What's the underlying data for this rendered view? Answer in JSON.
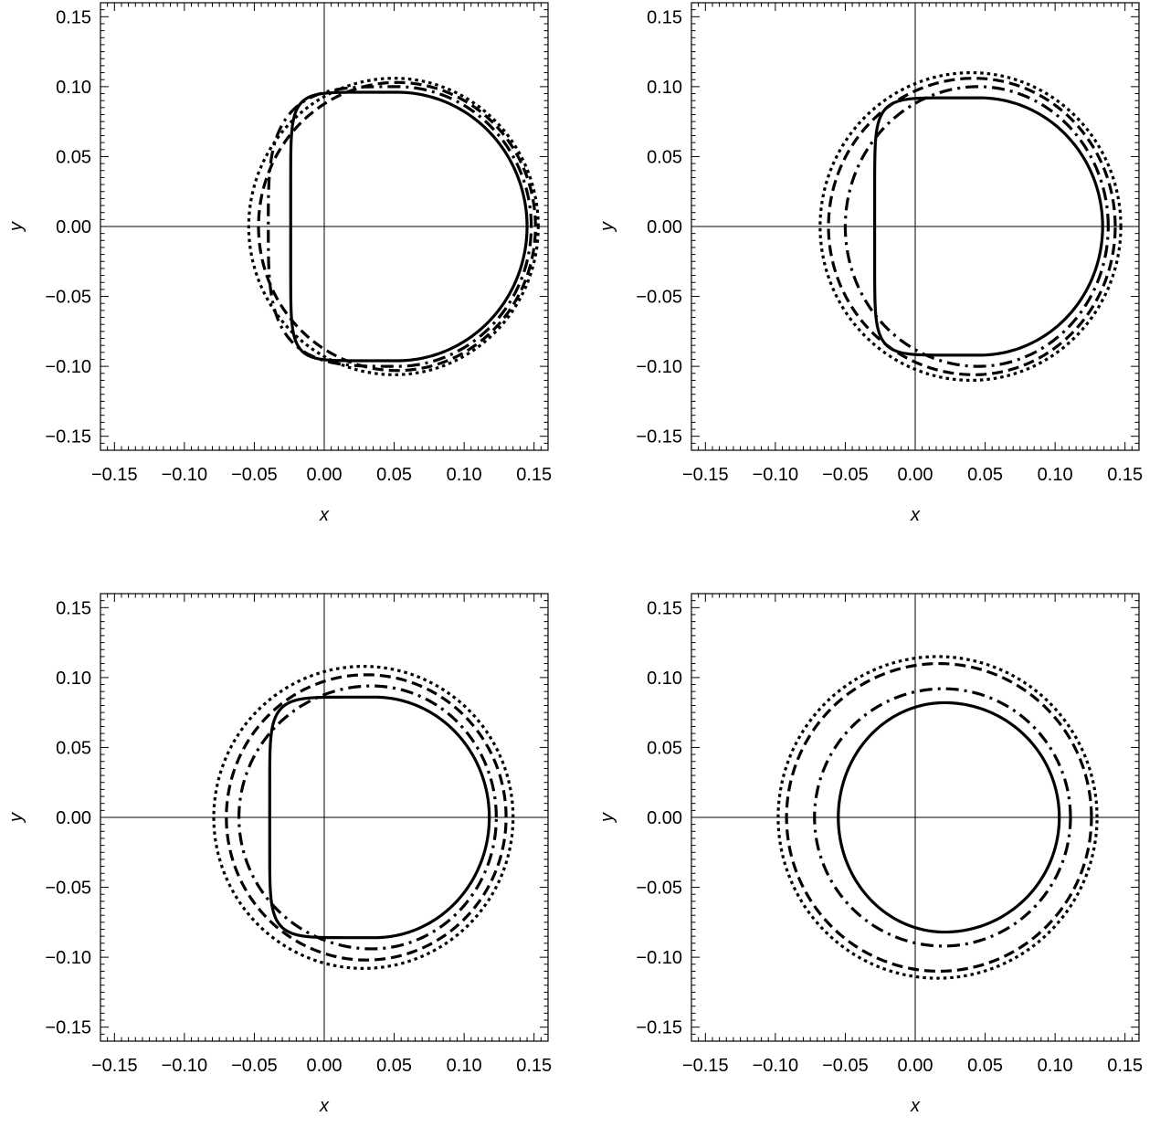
{
  "chart_data": [
    {
      "type": "line",
      "panel": "top-left",
      "xlabel": "x",
      "ylabel": "y",
      "xlim": [
        -0.16,
        0.16
      ],
      "ylim": [
        -0.16,
        0.16
      ],
      "xticks": [
        "-0.15",
        "-0.10",
        "-0.05",
        "0.00",
        "0.05",
        "0.10",
        "0.15"
      ],
      "yticks": [
        "-0.15",
        "-0.10",
        "-0.05",
        "0.00",
        "0.05",
        "0.10",
        "0.15"
      ],
      "series": [
        {
          "style": "solid",
          "x_left": -0.024,
          "x_right": 0.145,
          "x_top": 0.052,
          "y_top": 0.096,
          "flat_left": 0.55
        },
        {
          "style": "dashdot",
          "x_left": -0.04,
          "x_right": 0.148,
          "x_top": 0.052,
          "y_top": 0.1,
          "flat_left": 0.15
        },
        {
          "style": "dashed",
          "x_left": -0.047,
          "x_right": 0.151,
          "x_top": 0.052,
          "y_top": 0.103,
          "flat_left": 0.0
        },
        {
          "style": "dotted",
          "x_left": -0.054,
          "x_right": 0.153,
          "x_top": 0.05,
          "y_top": 0.106,
          "flat_left": 0.0
        }
      ]
    },
    {
      "type": "line",
      "panel": "top-right",
      "xlabel": "x",
      "ylabel": "y",
      "xlim": [
        -0.16,
        0.16
      ],
      "ylim": [
        -0.16,
        0.16
      ],
      "xticks": [
        "-0.15",
        "-0.10",
        "-0.05",
        "0.00",
        "0.05",
        "0.10",
        "0.15"
      ],
      "yticks": [
        "-0.15",
        "-0.10",
        "-0.05",
        "0.00",
        "0.05",
        "0.10",
        "0.15"
      ],
      "series": [
        {
          "style": "solid",
          "x_left": -0.029,
          "x_right": 0.134,
          "x_top": 0.046,
          "y_top": 0.092,
          "flat_left": 0.5
        },
        {
          "style": "dashdot",
          "x_left": -0.05,
          "x_right": 0.138,
          "x_top": 0.045,
          "y_top": 0.1,
          "flat_left": 0.0
        },
        {
          "style": "dashed",
          "x_left": -0.062,
          "x_right": 0.143,
          "x_top": 0.042,
          "y_top": 0.106,
          "flat_left": 0.0
        },
        {
          "style": "dotted",
          "x_left": -0.068,
          "x_right": 0.147,
          "x_top": 0.04,
          "y_top": 0.11,
          "flat_left": 0.0
        }
      ]
    },
    {
      "type": "line",
      "panel": "bottom-left",
      "xlabel": "x",
      "ylabel": "y",
      "xlim": [
        -0.16,
        0.16
      ],
      "ylim": [
        -0.16,
        0.16
      ],
      "xticks": [
        "-0.15",
        "-0.10",
        "-0.05",
        "0.00",
        "0.05",
        "0.10",
        "0.15"
      ],
      "yticks": [
        "-0.15",
        "-0.10",
        "-0.05",
        "0.00",
        "0.05",
        "0.10",
        "0.15"
      ],
      "series": [
        {
          "style": "solid",
          "x_left": -0.039,
          "x_right": 0.118,
          "x_top": 0.036,
          "y_top": 0.086,
          "flat_left": 0.45
        },
        {
          "style": "dashdot",
          "x_left": -0.061,
          "x_right": 0.123,
          "x_top": 0.034,
          "y_top": 0.094,
          "flat_left": 0.0
        },
        {
          "style": "dashed",
          "x_left": -0.07,
          "x_right": 0.13,
          "x_top": 0.03,
          "y_top": 0.102,
          "flat_left": 0.0
        },
        {
          "style": "dotted",
          "x_left": -0.079,
          "x_right": 0.135,
          "x_top": 0.028,
          "y_top": 0.108,
          "flat_left": 0.0
        }
      ]
    },
    {
      "type": "line",
      "panel": "bottom-right",
      "xlabel": "x",
      "ylabel": "y",
      "xlim": [
        -0.16,
        0.16
      ],
      "ylim": [
        -0.16,
        0.16
      ],
      "xticks": [
        "-0.15",
        "-0.10",
        "-0.05",
        "0.00",
        "0.05",
        "0.10",
        "0.15"
      ],
      "yticks": [
        "-0.15",
        "-0.10",
        "-0.05",
        "0.00",
        "0.05",
        "0.10",
        "0.15"
      ],
      "series": [
        {
          "style": "solid",
          "x_left": -0.055,
          "x_right": 0.103,
          "x_top": 0.021,
          "y_top": 0.082,
          "flat_left": 0.0
        },
        {
          "style": "dashdot",
          "x_left": -0.072,
          "x_right": 0.111,
          "x_top": 0.02,
          "y_top": 0.092,
          "flat_left": 0.0
        },
        {
          "style": "dashed",
          "x_left": -0.092,
          "x_right": 0.126,
          "x_top": 0.017,
          "y_top": 0.11,
          "flat_left": 0.0
        },
        {
          "style": "dotted",
          "x_left": -0.098,
          "x_right": 0.13,
          "x_top": 0.016,
          "y_top": 0.115,
          "flat_left": 0.0
        }
      ]
    }
  ]
}
